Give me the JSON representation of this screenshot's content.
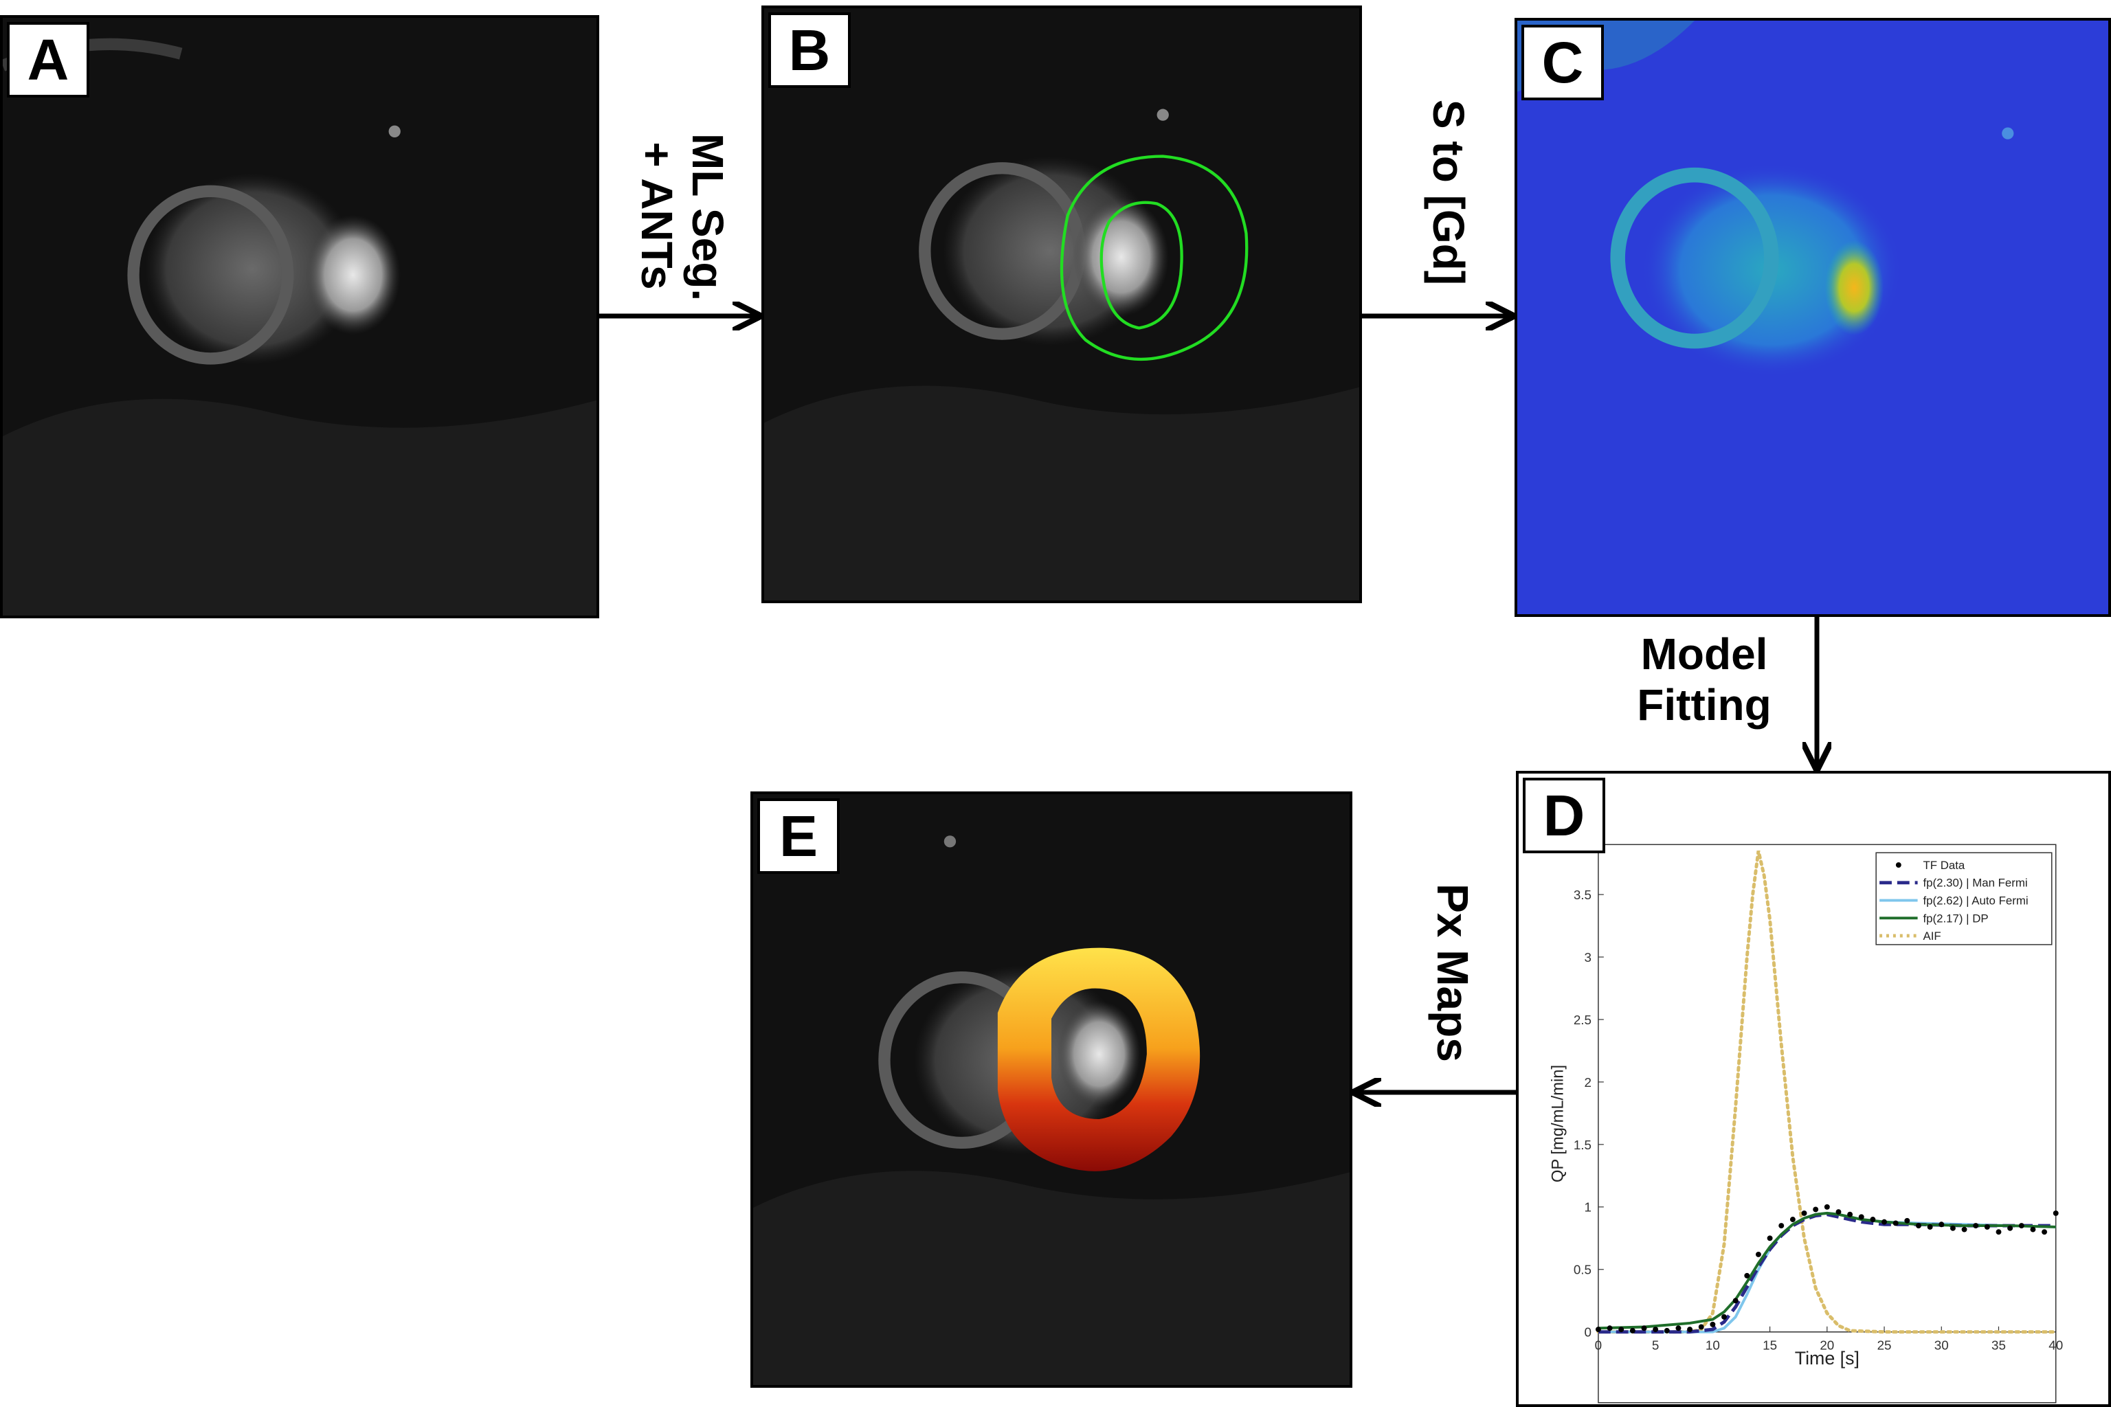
{
  "panels": {
    "a": {
      "letter": "A"
    },
    "b": {
      "letter": "B"
    },
    "c": {
      "letter": "C"
    },
    "d": {
      "letter": "D"
    },
    "e": {
      "letter": "E"
    }
  },
  "steps": {
    "ab_line1": "ML Seg.",
    "ab_line2": "+ ANTs",
    "bc": "S to [Gd]",
    "cd_line1": "Model",
    "cd_line2": "Fitting",
    "de": "Px Maps"
  },
  "colors": {
    "contour": "#22dd22",
    "parula_low": "#2c3dd8",
    "parula_mid": "#1fb7a6",
    "parula_high": "#f4b61c"
  },
  "chart_data": {
    "type": "line",
    "xlabel": "Time [s]",
    "ylabel": "QP [mg/mL/min]",
    "xlim": [
      0,
      40
    ],
    "ylim": [
      0,
      3.9
    ],
    "xticks": [
      0,
      5,
      10,
      15,
      20,
      25,
      30,
      35,
      40
    ],
    "yticks": [
      0,
      0.5,
      1,
      1.5,
      2,
      2.5,
      3,
      3.5
    ],
    "legend_position": "top-right",
    "series": [
      {
        "name": "TF Data",
        "style": "points",
        "color": "#000000",
        "x": [
          0,
          1,
          2,
          3,
          4,
          5,
          6,
          7,
          8,
          9,
          10,
          11,
          12,
          13,
          14,
          15,
          16,
          17,
          18,
          19,
          20,
          21,
          22,
          23,
          24,
          25,
          26,
          27,
          28,
          29,
          30,
          31,
          32,
          33,
          34,
          35,
          36,
          37,
          38,
          39,
          40
        ],
        "y": [
          0.02,
          0.03,
          0.02,
          0.01,
          0.03,
          0.02,
          0.01,
          0.03,
          0.02,
          0.04,
          0.06,
          0.12,
          0.25,
          0.45,
          0.62,
          0.75,
          0.85,
          0.9,
          0.95,
          0.98,
          1.0,
          0.96,
          0.94,
          0.92,
          0.9,
          0.88,
          0.87,
          0.89,
          0.85,
          0.84,
          0.86,
          0.83,
          0.82,
          0.85,
          0.84,
          0.8,
          0.83,
          0.85,
          0.82,
          0.8,
          0.95
        ]
      },
      {
        "name": "fp(2.30) | Man Fermi",
        "style": "dashed",
        "color": "#2a2a8a",
        "x": [
          0,
          8,
          10,
          11,
          12,
          13,
          14,
          15,
          16,
          17,
          18,
          19,
          20,
          21,
          22,
          23,
          24,
          25,
          28,
          32,
          36,
          40
        ],
        "y": [
          0,
          0,
          0.02,
          0.08,
          0.2,
          0.36,
          0.52,
          0.66,
          0.77,
          0.85,
          0.9,
          0.93,
          0.94,
          0.92,
          0.9,
          0.88,
          0.87,
          0.86,
          0.86,
          0.85,
          0.85,
          0.85
        ]
      },
      {
        "name": "fp(2.62) | Auto Fermi",
        "style": "solid",
        "color": "#7fc6ec",
        "x": [
          0,
          10,
          11,
          12,
          13,
          14,
          15,
          16,
          17,
          18,
          19,
          20,
          21,
          22,
          23,
          25,
          28,
          32,
          36,
          40
        ],
        "y": [
          0,
          0,
          0.03,
          0.12,
          0.3,
          0.5,
          0.66,
          0.78,
          0.86,
          0.91,
          0.94,
          0.95,
          0.94,
          0.92,
          0.9,
          0.88,
          0.87,
          0.86,
          0.85,
          0.84
        ]
      },
      {
        "name": "fp(2.17) | DP",
        "style": "solid",
        "color": "#1f6e2a",
        "x": [
          0,
          4,
          8,
          10,
          11,
          12,
          13,
          14,
          15,
          16,
          17,
          18,
          19,
          20,
          21,
          22,
          23,
          25,
          28,
          32,
          36,
          40
        ],
        "y": [
          0.03,
          0.04,
          0.07,
          0.1,
          0.16,
          0.26,
          0.4,
          0.55,
          0.68,
          0.78,
          0.86,
          0.91,
          0.94,
          0.95,
          0.94,
          0.92,
          0.9,
          0.88,
          0.86,
          0.85,
          0.85,
          0.84
        ]
      },
      {
        "name": "AIF",
        "style": "dotted",
        "color": "#d9bd6a",
        "x": [
          0,
          8,
          9,
          10,
          11,
          12,
          13,
          13.5,
          14,
          14.5,
          15,
          16,
          17,
          18,
          19,
          20,
          21,
          22,
          25,
          40
        ],
        "y": [
          0,
          0,
          0.02,
          0.15,
          0.7,
          1.8,
          3.0,
          3.5,
          3.85,
          3.65,
          3.3,
          2.3,
          1.4,
          0.75,
          0.35,
          0.15,
          0.05,
          0.01,
          0,
          0
        ]
      }
    ]
  }
}
